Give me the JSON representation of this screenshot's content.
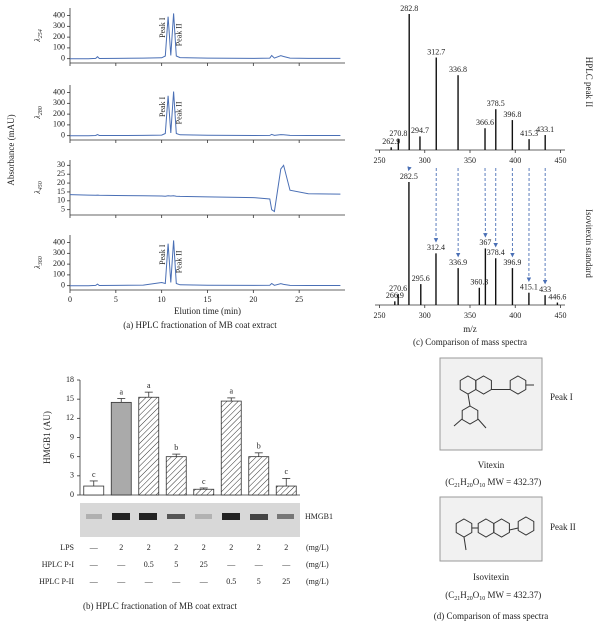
{
  "chart_data": [
    {
      "type": "line",
      "ylabel": [
        "λ",
        "254"
      ],
      "x": [
        0,
        2,
        2.8,
        3,
        3.2,
        5,
        8,
        10,
        10.4,
        10.7,
        11,
        11.3,
        11.6,
        12,
        15,
        20,
        21.8,
        22,
        22.3,
        23,
        23.3,
        24,
        26,
        29.5
      ],
      "values": [
        0,
        0,
        3,
        18,
        2,
        3,
        5,
        8,
        25,
        390,
        30,
        420,
        25,
        10,
        5,
        3,
        5,
        30,
        5,
        28,
        20,
        5,
        3,
        3
      ],
      "color": "#4a6fb5",
      "xlim": [
        0,
        30
      ],
      "xticks": [
        0,
        5,
        10,
        15,
        20,
        25
      ],
      "ylim": [
        -40,
        470
      ],
      "yticks": [
        0,
        100,
        200,
        300,
        400
      ],
      "annotations": [
        "Peak I",
        "Peak II"
      ]
    },
    {
      "type": "line",
      "ylabel": [
        "λ",
        "280"
      ],
      "x": [
        0,
        2,
        2.8,
        3,
        3.2,
        5,
        8,
        10,
        10.4,
        10.7,
        11,
        11.3,
        11.6,
        12,
        15,
        20,
        21.8,
        22,
        22.3,
        23,
        23.3,
        24,
        26,
        29.5
      ],
      "values": [
        0,
        0,
        2,
        10,
        2,
        2,
        3,
        5,
        20,
        370,
        25,
        410,
        20,
        8,
        4,
        2,
        3,
        12,
        3,
        10,
        8,
        3,
        2,
        2
      ],
      "color": "#4a6fb5",
      "xlim": [
        0,
        30
      ],
      "xticks": [
        0,
        5,
        10,
        15,
        20,
        25
      ],
      "ylim": [
        -40,
        470
      ],
      "yticks": [
        0,
        100,
        200,
        300,
        400
      ],
      "annotations": [
        "Peak I",
        "Peak II"
      ]
    },
    {
      "type": "line",
      "ylabel": [
        "λ",
        "450"
      ],
      "x": [
        0,
        2,
        2.8,
        3,
        3.2,
        5,
        8,
        10,
        10.4,
        10.7,
        11,
        11.3,
        11.6,
        12,
        15,
        20,
        21.8,
        22,
        22.3,
        23,
        23.3,
        24,
        26,
        29.5
      ],
      "values": [
        13.5,
        13.2,
        13.1,
        13.2,
        13.1,
        13,
        12.8,
        12.7,
        12.6,
        12.8,
        12.7,
        12.8,
        12.6,
        12.5,
        12.2,
        11.8,
        11,
        5,
        4,
        28,
        30,
        16,
        14,
        13.8
      ],
      "color": "#4a6fb5",
      "xlim": [
        0,
        30
      ],
      "xticks": [
        0,
        5,
        10,
        15,
        20,
        25
      ],
      "ylim": [
        2,
        33
      ],
      "yticks": [
        5,
        10,
        15,
        20,
        25,
        30
      ]
    },
    {
      "type": "line",
      "ylabel": [
        "λ",
        "360"
      ],
      "x": [
        0,
        2,
        2.8,
        3,
        3.2,
        5,
        8,
        10,
        10.4,
        10.7,
        11,
        11.3,
        11.6,
        12,
        15,
        20,
        21.8,
        22,
        22.3,
        23,
        23.3,
        24,
        26,
        29.5
      ],
      "values": [
        0,
        0,
        3,
        15,
        2,
        3,
        5,
        30,
        20,
        390,
        30,
        420,
        20,
        8,
        4,
        3,
        4,
        20,
        4,
        18,
        12,
        3,
        2,
        2
      ],
      "color": "#4a6fb5",
      "xlim": [
        0,
        30
      ],
      "xticks": [
        0,
        5,
        10,
        15,
        20,
        25
      ],
      "ylim": [
        -40,
        470
      ],
      "yticks": [
        0,
        100,
        200,
        300,
        400
      ],
      "annotations": [
        "Peak I",
        "Peak II"
      ],
      "xlabel": "Elution time (min)"
    },
    {
      "type": "bar",
      "ylabel": "HMGB1 (AU)",
      "values": [
        1.4,
        14.5,
        15.3,
        6.0,
        0.9,
        14.7,
        6.0,
        1.4
      ],
      "errors": [
        0.8,
        0.6,
        0.8,
        0.4,
        0.2,
        0.5,
        0.6,
        1.2
      ],
      "letters": [
        "c",
        "a",
        "a",
        "b",
        "c",
        "a",
        "b",
        "c"
      ],
      "styles": [
        "open",
        "solid",
        "hatched",
        "hatched",
        "hatched",
        "hatched",
        "hatched",
        "hatched"
      ],
      "color": "#aaaaaa",
      "ylim": [
        0,
        18
      ],
      "yticks": [
        0,
        3,
        6,
        9,
        12,
        15,
        18
      ],
      "blot_label": "HMGB1",
      "table": {
        "rows": [
          {
            "label": "LPS",
            "cells": [
              "—",
              2,
              2,
              2,
              2,
              2,
              2,
              2
            ]
          },
          {
            "label": "HPLC P-I",
            "cells": [
              "—",
              "—",
              0.5,
              5,
              25,
              "—",
              "—",
              "—"
            ]
          },
          {
            "label": "HPLC P-II",
            "cells": [
              "—",
              "—",
              "—",
              "—",
              "—",
              0.5,
              5,
              25
            ]
          }
        ],
        "unit": "(mg/L)"
      },
      "caption": "(b) HPLC fractionation of MB coat extract"
    },
    {
      "type": "spectrum",
      "label": "HPLC peak II",
      "x": [
        262.9,
        270.8,
        282.8,
        294.7,
        312.7,
        336.8,
        366.6,
        378.5,
        396.8,
        415.3,
        433.1
      ],
      "values": [
        2,
        8,
        100,
        10,
        68,
        55,
        16,
        30,
        22,
        8,
        11
      ],
      "xlim": [
        245,
        455
      ],
      "xticks": [
        250,
        300,
        350,
        400,
        450
      ]
    },
    {
      "type": "spectrum",
      "label": "Isovitexin standard",
      "x": [
        266.9,
        270.6,
        282.5,
        295.6,
        312.4,
        336.9,
        360.3,
        367,
        378.4,
        396.9,
        415.1,
        433,
        446.6
      ],
      "values": [
        3,
        9,
        100,
        17,
        42,
        30,
        14,
        46,
        38,
        30,
        10,
        8,
        2
      ],
      "xlim": [
        245,
        455
      ],
      "xticks": [
        250,
        300,
        350,
        400,
        450
      ],
      "xlabel": "m/z",
      "caption": "(c) Comparison of mass spectra"
    }
  ],
  "panel_a": {
    "ylabel": "Absorbance (mAU)",
    "caption": "(a) HPLC fractionation of MB coat extract"
  },
  "panel_d": {
    "structures": [
      {
        "peak": "Peak I",
        "name": "Vitexin",
        "formula": [
          "(C",
          "21",
          "H",
          "20",
          "O",
          "10",
          " MW = 432.37)"
        ]
      },
      {
        "peak": "Peak II",
        "name": "Isovitexin",
        "formula": [
          "(C",
          "21",
          "H",
          "20",
          "O",
          "10",
          " MW = 432.37)"
        ]
      }
    ],
    "caption": "(d) Comparison of mass spectra"
  }
}
